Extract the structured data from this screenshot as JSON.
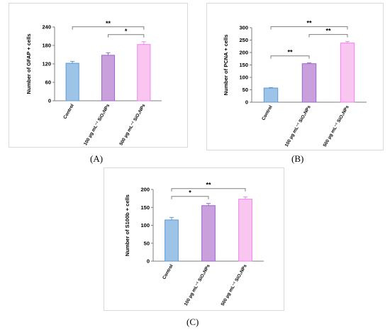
{
  "panel_labels": [
    "(A)",
    "(B)",
    "(C)"
  ],
  "chart_data": [
    {
      "type": "bar",
      "categories": [
        "Control",
        "100 µg mL⁻¹ SiO₂NPs",
        "500 µg mL⁻¹ SiO₂NPs"
      ],
      "values": [
        122,
        148,
        183
      ],
      "errors": [
        6,
        8,
        9
      ],
      "ylabel": "Number of GFAP + cells",
      "ylim": [
        0,
        240
      ],
      "yticks": [
        0,
        60,
        120,
        180,
        240
      ],
      "colors": [
        "#9dc3e6",
        "#c9a0dc",
        "#f9c6ef"
      ],
      "edge_colors": [
        "#5b9bd5",
        "#9966cc",
        "#ee82ee"
      ],
      "significance": [
        {
          "from": 0,
          "to": 2,
          "label": "**"
        },
        {
          "from": 1,
          "to": 2,
          "label": "*"
        }
      ]
    },
    {
      "type": "bar",
      "categories": [
        "Control",
        "100 µg mL⁻¹ SiO₂NPs",
        "500 µg mL⁻¹ SiO₂NPs"
      ],
      "values": [
        57,
        155,
        238
      ],
      "errors": [
        2,
        3,
        6
      ],
      "ylabel": "Number of PCNA + cells",
      "ylim": [
        0,
        300
      ],
      "yticks": [
        0,
        50,
        100,
        150,
        200,
        250,
        300
      ],
      "colors": [
        "#9dc3e6",
        "#c9a0dc",
        "#f9c6ef"
      ],
      "edge_colors": [
        "#5b9bd5",
        "#9966cc",
        "#ee82ee"
      ],
      "significance": [
        {
          "from": 0,
          "to": 2,
          "label": "**"
        },
        {
          "from": 0,
          "to": 1,
          "label": "**"
        },
        {
          "from": 1,
          "to": 2,
          "label": "**"
        }
      ]
    },
    {
      "type": "bar",
      "categories": [
        "Control",
        "100 µg mL⁻¹ SiO₂NPs",
        "500 µg mL⁻¹ SiO₂NPs"
      ],
      "values": [
        115,
        155,
        173
      ],
      "errors": [
        7,
        6,
        6
      ],
      "ylabel": "Number of S100b + cells",
      "ylim": [
        0,
        200
      ],
      "yticks": [
        0,
        50,
        100,
        150,
        200
      ],
      "colors": [
        "#9dc3e6",
        "#c9a0dc",
        "#f9c6ef"
      ],
      "edge_colors": [
        "#5b9bd5",
        "#9966cc",
        "#ee82ee"
      ],
      "significance": [
        {
          "from": 0,
          "to": 2,
          "label": "**"
        },
        {
          "from": 0,
          "to": 1,
          "label": "*"
        }
      ]
    }
  ]
}
